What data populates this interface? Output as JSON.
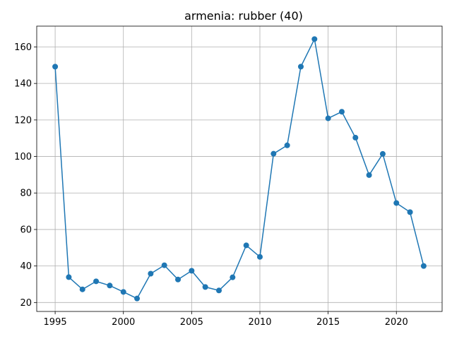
{
  "chart_data": {
    "type": "line",
    "title": "armenia: rubber (40)",
    "xlabel": "",
    "ylabel": "",
    "x": [
      1995,
      1996,
      1997,
      1998,
      1999,
      2000,
      2001,
      2002,
      2003,
      2004,
      2005,
      2006,
      2007,
      2008,
      2009,
      2010,
      2011,
      2012,
      2013,
      2014,
      2015,
      2016,
      2017,
      2018,
      2019,
      2020,
      2021,
      2022
    ],
    "series": [
      {
        "values": [
          149.2,
          33.9,
          27.2,
          31.6,
          29.3,
          25.8,
          22.2,
          35.8,
          40.4,
          32.6,
          37.4,
          28.5,
          26.6,
          33.8,
          51.3,
          45.0,
          101.5,
          106.1,
          149.2,
          164.3,
          120.9,
          124.5,
          110.3,
          89.8,
          101.4,
          74.5,
          69.5,
          40.0
        ],
        "color": "#1f77b4"
      }
    ],
    "xlim": [
      1993.65,
      2023.35
    ],
    "ylim": [
      15.1,
      171.4
    ],
    "xticks": [
      1995,
      2000,
      2005,
      2010,
      2015,
      2020
    ],
    "yticks": [
      20,
      40,
      60,
      80,
      100,
      120,
      140,
      160
    ],
    "grid": true,
    "legend": "none"
  }
}
